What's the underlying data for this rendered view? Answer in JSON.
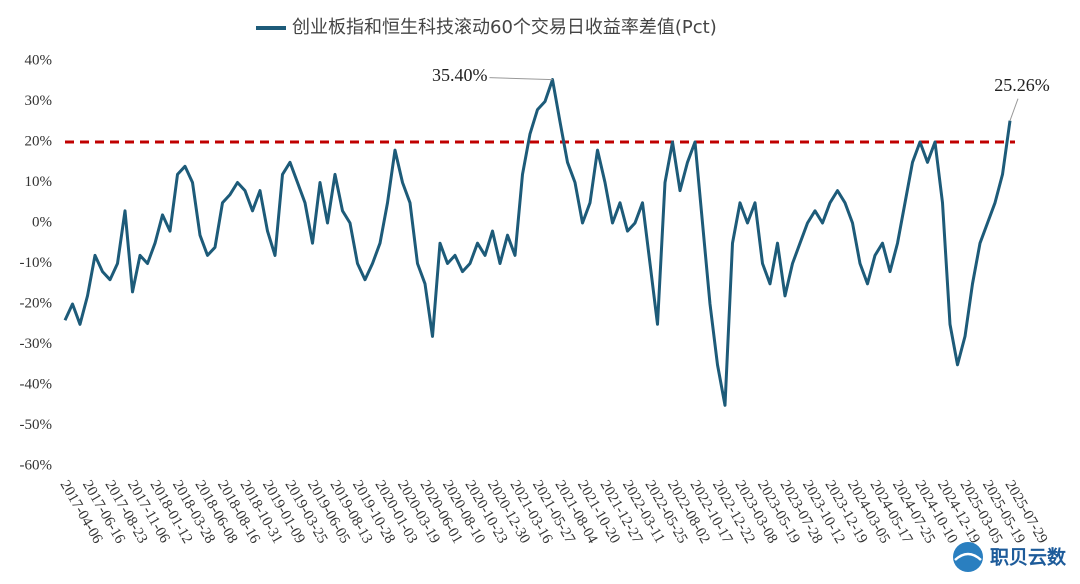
{
  "chart_data": {
    "type": "line",
    "series": [
      {
        "name": "创业板指和恒生科技滚动60个交易日收益率差值(Pct)",
        "color": "#1d5b79",
        "values": [
          -24,
          -20,
          -25,
          -18,
          -8,
          -12,
          -14,
          -10,
          3,
          -17,
          -8,
          -10,
          -5,
          2,
          -2,
          12,
          14,
          10,
          -3,
          -8,
          -6,
          5,
          7,
          10,
          8,
          3,
          8,
          -2,
          -8,
          12,
          15,
          10,
          5,
          -5,
          10,
          0,
          12,
          3,
          0,
          -10,
          -14,
          -10,
          -5,
          5,
          18,
          10,
          5,
          -10,
          -15,
          -28,
          -5,
          -10,
          -8,
          -12,
          -10,
          -5,
          -8,
          -2,
          -10,
          -3,
          -8,
          12,
          22,
          28,
          30,
          35.4,
          25,
          15,
          10,
          0,
          5,
          18,
          10,
          0,
          5,
          -2,
          0,
          5,
          -10,
          -25,
          10,
          20,
          8,
          15,
          20,
          0,
          -20,
          -35,
          -45,
          -5,
          5,
          0,
          5,
          -10,
          -15,
          -5,
          -18,
          -10,
          -5,
          0,
          3,
          0,
          5,
          8,
          5,
          0,
          -10,
          -15,
          -8,
          -5,
          -12,
          -5,
          5,
          15,
          20,
          15,
          20,
          5,
          -25,
          -35,
          -28,
          -15,
          -5,
          0,
          5,
          12,
          25.26
        ]
      }
    ],
    "categories": [
      "2017-04-06",
      null,
      null,
      "2017-06-16",
      null,
      null,
      "2017-08-23",
      null,
      null,
      "2017-11-06",
      null,
      null,
      "2018-01-12",
      null,
      null,
      "2018-03-28",
      null,
      null,
      "2018-06-08",
      null,
      null,
      "2018-08-16",
      null,
      null,
      "2018-10-31",
      null,
      null,
      "2019-01-09",
      null,
      null,
      "2019-03-25",
      null,
      null,
      "2019-06-05",
      null,
      null,
      "2019-08-13",
      null,
      null,
      "2019-10-28",
      null,
      null,
      "2020-01-03",
      null,
      null,
      "2020-03-19",
      null,
      null,
      "2020-06-01",
      null,
      null,
      "2020-08-10",
      null,
      null,
      "2020-10-23",
      null,
      null,
      "2020-12-30",
      null,
      null,
      "2021-03-16",
      null,
      null,
      "2021-05-27",
      null,
      null,
      "2021-08-04",
      null,
      null,
      "2021-10-20",
      null,
      null,
      "2021-12-27",
      null,
      null,
      "2022-03-11",
      null,
      null,
      "2022-05-25",
      null,
      null,
      "2022-08-02",
      null,
      null,
      "2022-10-17",
      null,
      null,
      "2022-12-22",
      null,
      null,
      "2023-03-08",
      null,
      null,
      "2023-05-19",
      null,
      null,
      "2023-07-28",
      null,
      null,
      "2023-10-12",
      null,
      null,
      "2023-12-19",
      null,
      null,
      "2024-03-05",
      null,
      null,
      "2024-05-17",
      null,
      null,
      "2024-07-25",
      null,
      null,
      "2024-10-10",
      null,
      null,
      "2024-12-19",
      null,
      null,
      "2025-03-05",
      null,
      null,
      "2025-05-19",
      null,
      null,
      "2025-07-29"
    ],
    "ylim": [
      -60,
      40
    ],
    "yticks": [
      {
        "value": -60,
        "label": "-60%"
      },
      {
        "value": -50,
        "label": "-50%"
      },
      {
        "value": -40,
        "label": "-40%"
      },
      {
        "value": -30,
        "label": "-30%"
      },
      {
        "value": -20,
        "label": "-20%"
      },
      {
        "value": -10,
        "label": "-10%"
      },
      {
        "value": 0,
        "label": "0%"
      },
      {
        "value": 10,
        "label": "10%"
      },
      {
        "value": 20,
        "label": "20%"
      },
      {
        "value": 30,
        "label": "30%"
      },
      {
        "value": 40,
        "label": "40%"
      }
    ],
    "grid": false,
    "reference_line": {
      "value": 20,
      "color": "#c00000"
    },
    "annotations": [
      {
        "text": "35.40%",
        "value": 35.4
      },
      {
        "text": "25.26%",
        "value": 25.26
      }
    ],
    "legend": "top",
    "watermark": "职贝云数"
  }
}
